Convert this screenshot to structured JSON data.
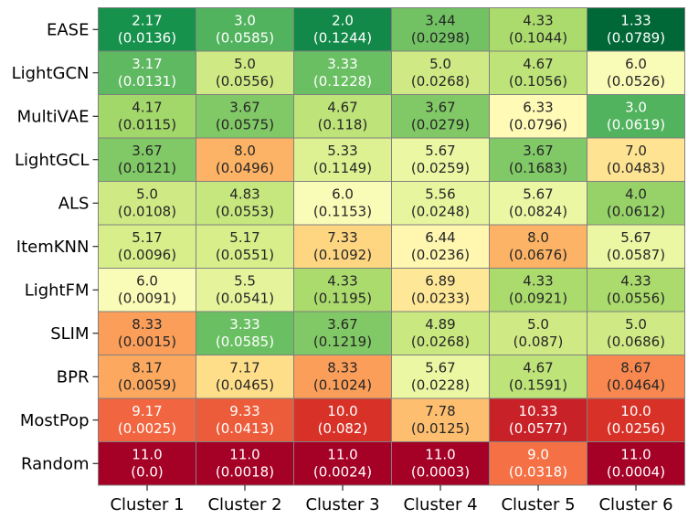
{
  "chart_data": {
    "type": "heatmap",
    "title": "",
    "xlabel": "",
    "ylabel": "",
    "columns": [
      "Cluster 1",
      "Cluster 2",
      "Cluster 3",
      "Cluster 4",
      "Cluster 5",
      "Cluster 6"
    ],
    "rows": [
      "EASE",
      "LightGCN",
      "MultiVAE",
      "LightGCL",
      "ALS",
      "ItemKNN",
      "LightFM",
      "SLIM",
      "BPR",
      "MostPop",
      "Random"
    ],
    "values": [
      [
        "2.17",
        "3.0",
        "2.0",
        "3.44",
        "4.33",
        "1.33"
      ],
      [
        "3.17",
        "5.0",
        "3.33",
        "5.0",
        "4.67",
        "6.0"
      ],
      [
        "4.17",
        "3.67",
        "4.67",
        "3.67",
        "6.33",
        "3.0"
      ],
      [
        "3.67",
        "8.0",
        "5.33",
        "5.67",
        "3.67",
        "7.0"
      ],
      [
        "5.0",
        "4.83",
        "6.0",
        "5.56",
        "5.67",
        "4.0"
      ],
      [
        "5.17",
        "5.17",
        "7.33",
        "6.44",
        "8.0",
        "5.67"
      ],
      [
        "6.0",
        "5.5",
        "4.33",
        "6.89",
        "4.33",
        "4.33"
      ],
      [
        "8.33",
        "3.33",
        "3.67",
        "4.89",
        "5.0",
        "5.0"
      ],
      [
        "8.17",
        "7.17",
        "8.33",
        "5.67",
        "4.67",
        "8.67"
      ],
      [
        "9.17",
        "9.33",
        "10.0",
        "7.78",
        "10.33",
        "10.0"
      ],
      [
        "11.0",
        "11.0",
        "11.0",
        "11.0",
        "9.0",
        "11.0"
      ]
    ],
    "secondary_values": [
      [
        "(0.0136)",
        "(0.0585)",
        "(0.1244)",
        "(0.0298)",
        "(0.1044)",
        "(0.0789)"
      ],
      [
        "(0.0131)",
        "(0.0556)",
        "(0.1228)",
        "(0.0268)",
        "(0.1056)",
        "(0.0526)"
      ],
      [
        "(0.0115)",
        "(0.0575)",
        "(0.118)",
        "(0.0279)",
        "(0.0796)",
        "(0.0619)"
      ],
      [
        "(0.0121)",
        "(0.0496)",
        "(0.1149)",
        "(0.0259)",
        "(0.1683)",
        "(0.0483)"
      ],
      [
        "(0.0108)",
        "(0.0553)",
        "(0.1153)",
        "(0.0248)",
        "(0.0824)",
        "(0.0612)"
      ],
      [
        "(0.0096)",
        "(0.0551)",
        "(0.1092)",
        "(0.0236)",
        "(0.0676)",
        "(0.0587)"
      ],
      [
        "(0.0091)",
        "(0.0541)",
        "(0.1195)",
        "(0.0233)",
        "(0.0921)",
        "(0.0556)"
      ],
      [
        "(0.0015)",
        "(0.0585)",
        "(0.1219)",
        "(0.0268)",
        "(0.087)",
        "(0.0686)"
      ],
      [
        "(0.0059)",
        "(0.0465)",
        "(0.1024)",
        "(0.0228)",
        "(0.1591)",
        "(0.0464)"
      ],
      [
        "(0.0025)",
        "(0.0413)",
        "(0.082)",
        "(0.0125)",
        "(0.0577)",
        "(0.0256)"
      ],
      [
        "(0.0)",
        "(0.0018)",
        "(0.0024)",
        "(0.0003)",
        "(0.0318)",
        "(0.0004)"
      ]
    ],
    "color_scale": {
      "name": "RdYlGn reversed",
      "min": 1.33,
      "max": 11.0
    }
  }
}
